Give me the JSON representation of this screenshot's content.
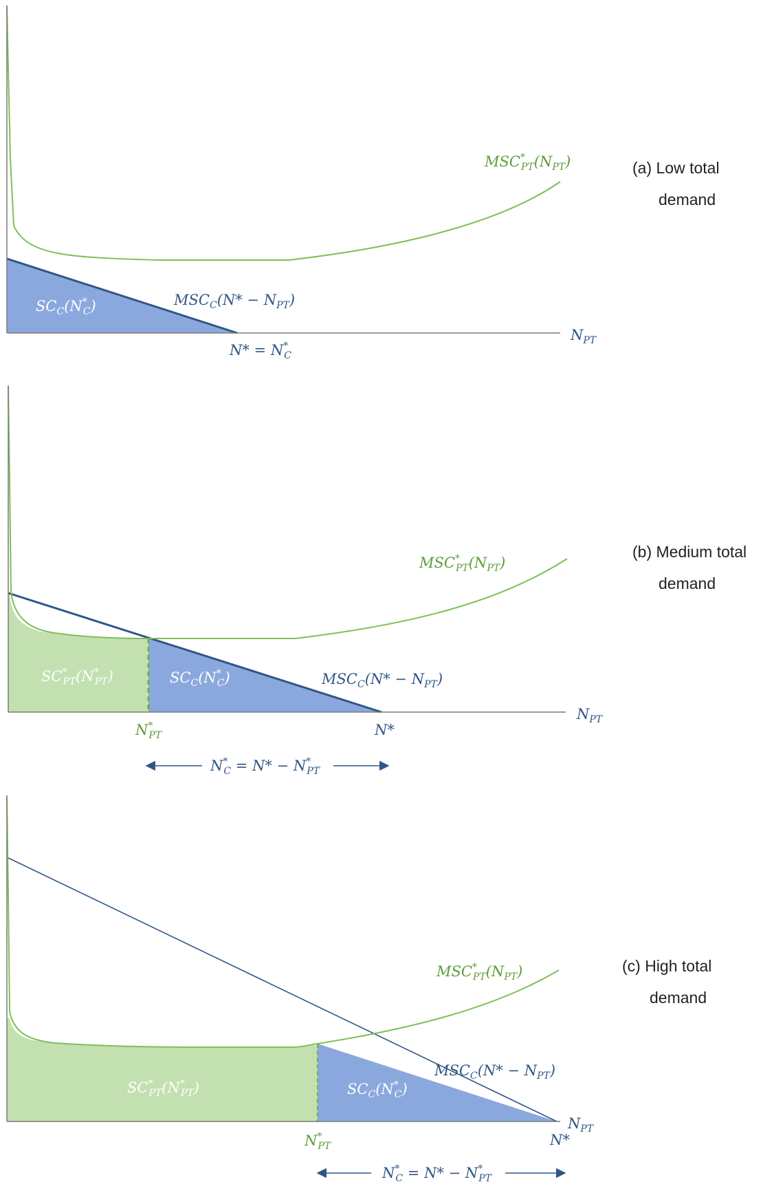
{
  "colors": {
    "axis": "#7a7a7a",
    "green_curve": "#7dbf58",
    "blue_line": "#2f5686",
    "blue_fill": "#8ba8de",
    "green_fill": "#c3e0b0",
    "green_text": "#5e9c38",
    "blue_text": "#2f5686",
    "fill_label": "#ffffff",
    "caption": "#222222"
  },
  "panels": [
    {
      "id": "a",
      "caption_line1": "(a) Low total",
      "caption_line2": "demand",
      "x_label": {
        "base": "N",
        "sub": "PT"
      },
      "msc_pt_label": {
        "base": "MSC",
        "sup": "*",
        "sub": "PT",
        "arg_open": "(N",
        "arg_sub": "PT",
        "arg_close": ")"
      },
      "msc_c_label": {
        "base": "MSC",
        "sub": "C",
        "arg": "(N* − N",
        "arg_sub": "PT",
        "arg_close": ")"
      },
      "sc_c_label": {
        "base": "SC",
        "sub": "C",
        "arg_open": "(N",
        "arg_sup": "*",
        "arg_sub": "C",
        "arg_close": ")"
      },
      "bottom_label": {
        "left": "N* = N",
        "sup": "*",
        "sub": "C"
      }
    },
    {
      "id": "b",
      "caption_line1": "(b) Medium total",
      "caption_line2": "demand",
      "x_label": {
        "base": "N",
        "sub": "PT"
      },
      "msc_pt_label": {
        "base": "MSC",
        "sup": "*",
        "sub": "PT",
        "arg_open": "(N",
        "arg_sub": "PT",
        "arg_close": ")"
      },
      "msc_c_label": {
        "base": "MSC",
        "sub": "C",
        "arg": "(N* − N",
        "arg_sub": "PT",
        "arg_close": ")"
      },
      "sc_c_label": {
        "base": "SC",
        "sub": "C",
        "arg_open": "(N",
        "arg_sup": "*",
        "arg_sub": "C",
        "arg_close": ")"
      },
      "sc_pt_label": {
        "base": "SC",
        "sup": "*",
        "sub": "PT",
        "arg_open": "(N",
        "arg_sup": "*",
        "arg_sub": "PT",
        "arg_close": ")"
      },
      "npt_label": {
        "base": "N",
        "sup": "*",
        "sub": "PT"
      },
      "nstar_label": "N*",
      "arrow_label": {
        "lhs": "N",
        "lhs_sup": "*",
        "lhs_sub": "C",
        "rhs": " = N* − N",
        "rhs_sup": "*",
        "rhs_sub": "PT"
      }
    },
    {
      "id": "c",
      "caption_line1": "(c) High total",
      "caption_line2": "demand",
      "x_label": {
        "base": "N",
        "sub": "PT"
      },
      "msc_pt_label": {
        "base": "MSC",
        "sup": "*",
        "sub": "PT",
        "arg_open": "(N",
        "arg_sub": "PT",
        "arg_close": ")"
      },
      "msc_c_label": {
        "base": "MSC",
        "sub": "C",
        "arg": "(N* − N",
        "arg_sub": "PT",
        "arg_close": ")"
      },
      "sc_c_label": {
        "base": "SC",
        "sub": "C",
        "arg_open": "(N",
        "arg_sup": "*",
        "arg_sub": "C",
        "arg_close": ")"
      },
      "sc_pt_label": {
        "base": "SC",
        "sup": "*",
        "sub": "PT",
        "arg_open": "(N",
        "arg_sup": "*",
        "arg_sub": "PT",
        "arg_close": ")"
      },
      "npt_label": {
        "base": "N",
        "sup": "*",
        "sub": "PT"
      },
      "nstar_label": "N*",
      "arrow_label": {
        "lhs": "N",
        "lhs_sup": "*",
        "lhs_sub": "C",
        "rhs": " = N* − N",
        "rhs_sup": "*",
        "rhs_sub": "PT"
      }
    }
  ]
}
